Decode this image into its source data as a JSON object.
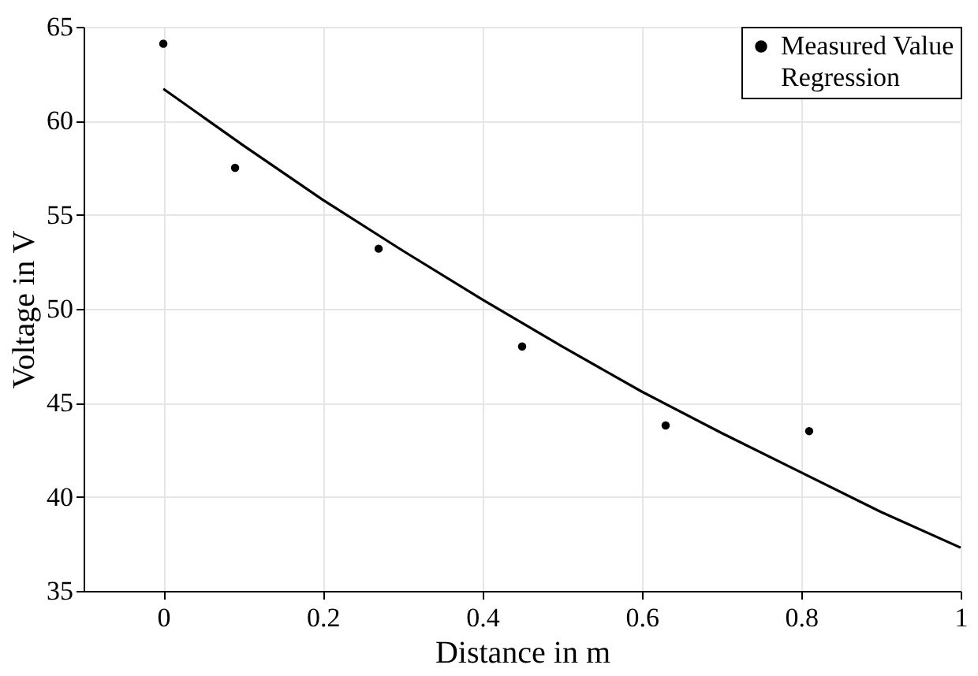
{
  "chart_data": {
    "type": "scatter",
    "xlabel": "Distance in m",
    "ylabel": "Voltage in V",
    "xlim": [
      -0.1,
      1
    ],
    "ylim": [
      35,
      65
    ],
    "xticks": [
      0,
      0.2,
      0.4,
      0.6,
      0.8,
      1
    ],
    "yticks": [
      35,
      40,
      45,
      50,
      55,
      60,
      65
    ],
    "grid": true,
    "legend": "top right",
    "series": [
      {
        "name": "Measured Value",
        "marker": "circle",
        "color": "#000000",
        "x": [
          0,
          0.09,
          0.27,
          0.45,
          0.63,
          0.81
        ],
        "values": [
          64.1,
          57.5,
          53.2,
          48.0,
          43.8,
          43.5
        ]
      },
      {
        "name": "Regression",
        "type": "line",
        "marker": "none",
        "line_style": "solid",
        "color": "#000000",
        "x": [
          0,
          0.1,
          0.2,
          0.3,
          0.4,
          0.5,
          0.6,
          0.7,
          0.8,
          0.9,
          1
        ],
        "values": [
          61.7,
          58.7,
          55.8,
          53.1,
          50.5,
          48.0,
          45.6,
          43.4,
          41.3,
          39.2,
          37.3
        ]
      }
    ]
  }
}
